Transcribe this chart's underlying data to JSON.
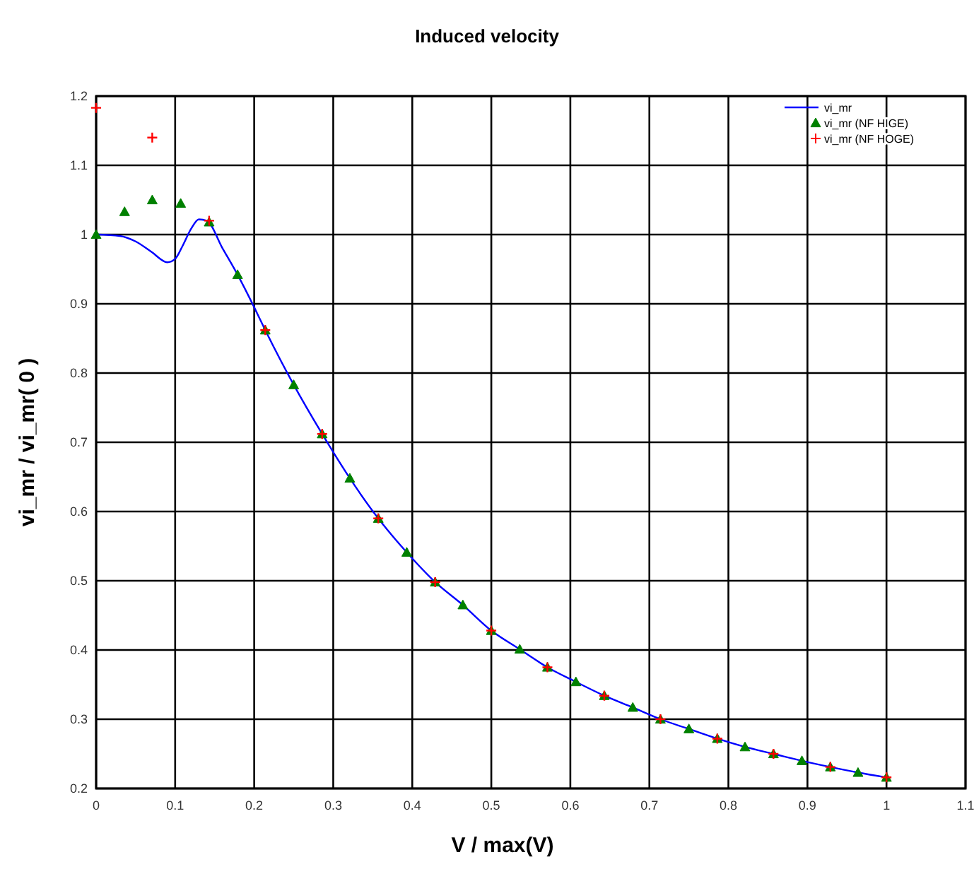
{
  "chart_data": {
    "type": "line",
    "title": "Induced velocity",
    "xlabel": "V / max(V)",
    "ylabel": "vi_mr / vi_mr( 0 )",
    "xlim": [
      0,
      1.1
    ],
    "ylim": [
      0.2,
      1.2
    ],
    "xticks": [
      0,
      0.1,
      0.2,
      0.3,
      0.4,
      0.5,
      0.6,
      0.7,
      0.8,
      0.9,
      1,
      1.1
    ],
    "yticks": [
      0.2,
      0.3,
      0.4,
      0.5,
      0.6,
      0.7,
      0.8,
      0.9,
      1,
      1.1,
      1.2
    ],
    "grid": true,
    "legend": "top right",
    "series": [
      {
        "name": "vi_mr",
        "color": "#0000ff",
        "marker": "none",
        "x": [
          0,
          0.03,
          0.05,
          0.07,
          0.09,
          0.1,
          0.11,
          0.12,
          0.13,
          0.14,
          0.16,
          0.179,
          0.2,
          0.214,
          0.25,
          0.286,
          0.321,
          0.357,
          0.393,
          0.429,
          0.464,
          0.5,
          0.536,
          0.571,
          0.607,
          0.643,
          0.679,
          0.714,
          0.75,
          0.786,
          0.821,
          0.857,
          0.893,
          0.929,
          0.964,
          1
        ],
        "values": [
          1,
          0.998,
          0.99,
          0.975,
          0.96,
          0.965,
          0.985,
          1.008,
          1.022,
          1.02,
          0.98,
          0.942,
          0.895,
          0.862,
          0.783,
          0.712,
          0.648,
          0.59,
          0.541,
          0.498,
          0.465,
          0.428,
          0.401,
          0.375,
          0.354,
          0.334,
          0.317,
          0.3,
          0.286,
          0.272,
          0.26,
          0.25,
          0.24,
          0.231,
          0.223,
          0.216
        ]
      },
      {
        "name": "vi_mr (NF HIGE)",
        "type": "scatter",
        "color": "#008000",
        "marker": "triangle",
        "x": [
          0,
          0.036,
          0.071,
          0.107,
          0.143,
          0.179,
          0.214,
          0.25,
          0.286,
          0.321,
          0.357,
          0.393,
          0.429,
          0.464,
          0.5,
          0.536,
          0.571,
          0.607,
          0.643,
          0.679,
          0.714,
          0.75,
          0.786,
          0.821,
          0.857,
          0.893,
          0.929,
          0.964,
          1
        ],
        "values": [
          1,
          1.033,
          1.05,
          1.045,
          1.018,
          0.942,
          0.862,
          0.783,
          0.712,
          0.648,
          0.59,
          0.541,
          0.498,
          0.465,
          0.428,
          0.401,
          0.375,
          0.354,
          0.334,
          0.317,
          0.3,
          0.286,
          0.272,
          0.26,
          0.25,
          0.24,
          0.231,
          0.223,
          0.216
        ]
      },
      {
        "name": "vi_mr (NF HOGE)",
        "type": "scatter",
        "color": "#ff0000",
        "marker": "cross",
        "x": [
          0,
          0.071,
          0.143,
          0.214,
          0.286,
          0.357,
          0.429,
          0.5,
          0.571,
          0.643,
          0.714,
          0.786,
          0.857,
          0.929,
          1
        ],
        "values": [
          1.183,
          1.14,
          1.02,
          0.862,
          0.712,
          0.59,
          0.498,
          0.428,
          0.375,
          0.334,
          0.3,
          0.272,
          0.25,
          0.231,
          0.216
        ]
      }
    ]
  }
}
